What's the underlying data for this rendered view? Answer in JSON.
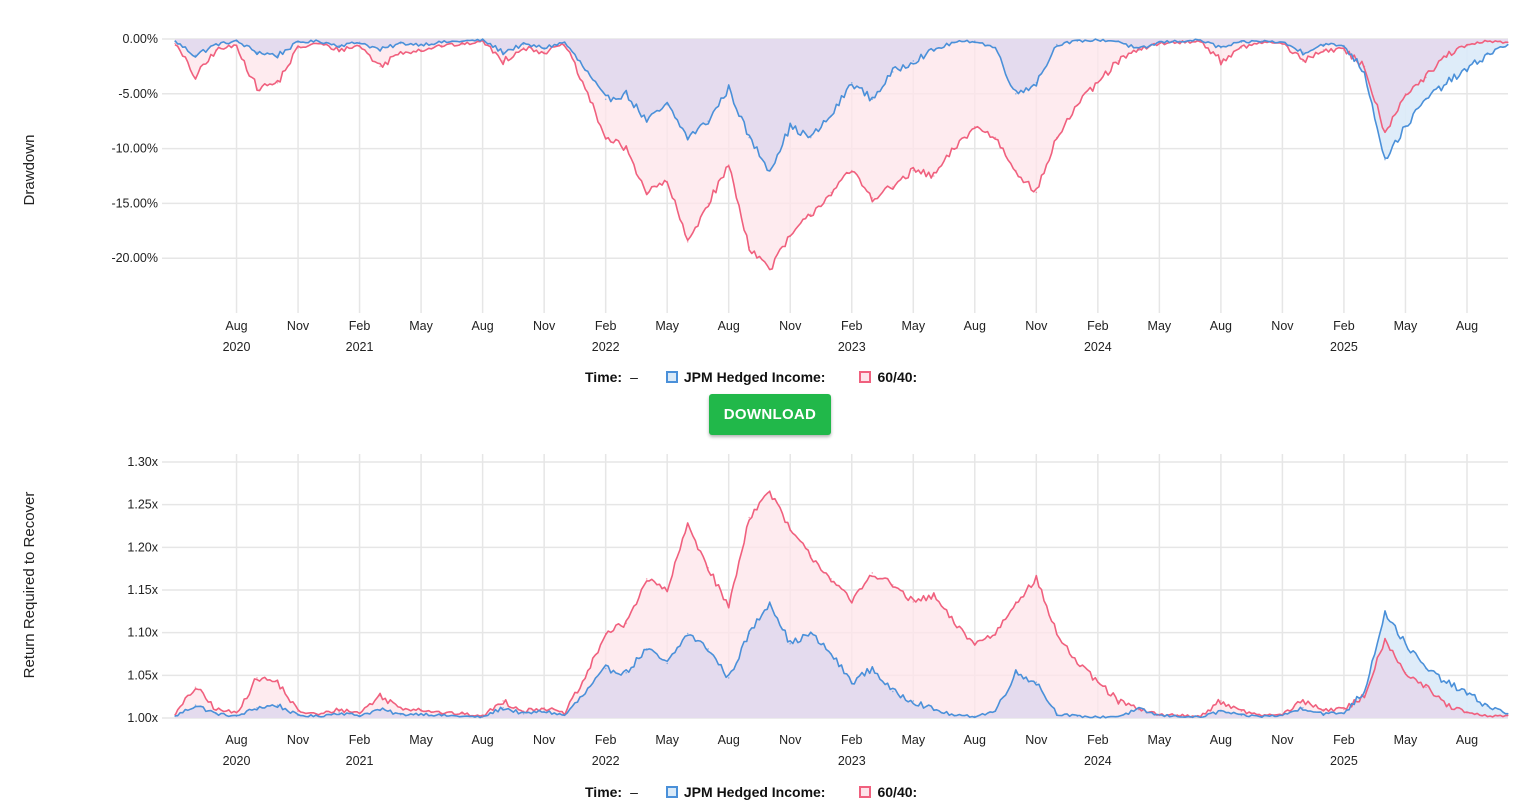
{
  "colors": {
    "jpm": "#4a90d9",
    "jpm_fill": "#daeaf8",
    "bench": "#f0607e",
    "bench_fill": "#fde4ea",
    "overlap_fill": "#e4dbee",
    "grid": "#e6e6e6",
    "download_bg": "#21b84a"
  },
  "legend": {
    "time_label": "Time:",
    "time_value": "–",
    "series_1": "JPM Hedged Income:",
    "series_2": "60/40:"
  },
  "download_label": "DOWNLOAD",
  "x_axis": {
    "month_ticks": [
      "Aug",
      "Nov",
      "Feb",
      "May",
      "Aug",
      "Nov",
      "Feb",
      "May",
      "Aug",
      "Nov",
      "Feb",
      "May",
      "Aug",
      "Nov",
      "Feb",
      "May",
      "Aug",
      "Nov",
      "Feb",
      "May",
      "Aug"
    ],
    "year_labels": [
      {
        "label": "2020",
        "tick_index": 0
      },
      {
        "label": "2021",
        "tick_index": 2
      },
      {
        "label": "2022",
        "tick_index": 6
      },
      {
        "label": "2023",
        "tick_index": 10
      },
      {
        "label": "2024",
        "tick_index": 14
      },
      {
        "label": "2025",
        "tick_index": 18
      }
    ],
    "range": [
      "2020-05",
      "2025-10"
    ]
  },
  "chart_data": [
    {
      "type": "area",
      "id": "drawdown",
      "ylabel": "Drawdown",
      "ylim": [
        -0.25,
        0.0
      ],
      "yticks": [
        0,
        -0.05,
        -0.1,
        -0.15,
        -0.2
      ],
      "ytick_labels": [
        "0.00%",
        "-5.00%",
        "-10.00%",
        "-15.00%",
        "-20.00%"
      ],
      "grid": true,
      "x": [
        "2020-05",
        "2020-06",
        "2020-07",
        "2020-08",
        "2020-09",
        "2020-10",
        "2020-11",
        "2020-12",
        "2021-01",
        "2021-02",
        "2021-03",
        "2021-04",
        "2021-05",
        "2021-06",
        "2021-07",
        "2021-08",
        "2021-09",
        "2021-10",
        "2021-11",
        "2021-12",
        "2022-01",
        "2022-02",
        "2022-03",
        "2022-04",
        "2022-05",
        "2022-06",
        "2022-07",
        "2022-08",
        "2022-09",
        "2022-10",
        "2022-11",
        "2022-12",
        "2023-01",
        "2023-02",
        "2023-03",
        "2023-04",
        "2023-05",
        "2023-06",
        "2023-07",
        "2023-08",
        "2023-09",
        "2023-10",
        "2023-11",
        "2023-12",
        "2024-01",
        "2024-02",
        "2024-03",
        "2024-04",
        "2024-05",
        "2024-06",
        "2024-07",
        "2024-08",
        "2024-09",
        "2024-10",
        "2024-11",
        "2024-12",
        "2025-01",
        "2025-02",
        "2025-03",
        "2025-04",
        "2025-05",
        "2025-06",
        "2025-07",
        "2025-08",
        "2025-09",
        "2025-10"
      ],
      "series": [
        {
          "name": "JPM Hedged Income",
          "values": [
            -0.002,
            -0.015,
            -0.005,
            -0.002,
            -0.012,
            -0.015,
            -0.003,
            -0.002,
            -0.006,
            -0.003,
            -0.01,
            -0.004,
            -0.005,
            -0.003,
            -0.002,
            -0.001,
            -0.012,
            -0.005,
            -0.008,
            -0.003,
            -0.028,
            -0.055,
            -0.05,
            -0.075,
            -0.06,
            -0.09,
            -0.075,
            -0.045,
            -0.09,
            -0.12,
            -0.08,
            -0.09,
            -0.07,
            -0.04,
            -0.055,
            -0.03,
            -0.02,
            -0.01,
            -0.003,
            -0.002,
            -0.008,
            -0.05,
            -0.04,
            -0.005,
            -0.002,
            -0.001,
            -0.002,
            -0.01,
            -0.003,
            -0.002,
            -0.001,
            -0.008,
            -0.003,
            -0.002,
            -0.003,
            -0.012,
            -0.005,
            -0.006,
            -0.03,
            -0.11,
            -0.08,
            -0.055,
            -0.04,
            -0.028,
            -0.014,
            -0.005
          ]
        },
        {
          "name": "60/40",
          "values": [
            -0.004,
            -0.035,
            -0.01,
            -0.006,
            -0.045,
            -0.04,
            -0.008,
            -0.004,
            -0.01,
            -0.006,
            -0.025,
            -0.012,
            -0.01,
            -0.006,
            -0.005,
            -0.002,
            -0.02,
            -0.008,
            -0.012,
            -0.005,
            -0.045,
            -0.09,
            -0.1,
            -0.14,
            -0.13,
            -0.185,
            -0.15,
            -0.115,
            -0.19,
            -0.21,
            -0.18,
            -0.16,
            -0.14,
            -0.12,
            -0.145,
            -0.135,
            -0.12,
            -0.125,
            -0.1,
            -0.08,
            -0.09,
            -0.12,
            -0.14,
            -0.09,
            -0.06,
            -0.04,
            -0.02,
            -0.01,
            -0.004,
            -0.003,
            -0.002,
            -0.02,
            -0.008,
            -0.003,
            -0.004,
            -0.02,
            -0.01,
            -0.01,
            -0.025,
            -0.085,
            -0.05,
            -0.035,
            -0.015,
            -0.006,
            -0.002,
            -0.003
          ]
        }
      ]
    },
    {
      "type": "area",
      "id": "recover",
      "ylabel": "Return Required to Recover",
      "ylim": [
        1.0,
        1.3
      ],
      "yticks": [
        1.0,
        1.05,
        1.1,
        1.15,
        1.2,
        1.25,
        1.3
      ],
      "ytick_labels": [
        "1.00x",
        "1.05x",
        "1.10x",
        "1.15x",
        "1.20x",
        "1.25x",
        "1.30x"
      ],
      "grid": true,
      "x": [
        "2020-05",
        "2020-06",
        "2020-07",
        "2020-08",
        "2020-09",
        "2020-10",
        "2020-11",
        "2020-12",
        "2021-01",
        "2021-02",
        "2021-03",
        "2021-04",
        "2021-05",
        "2021-06",
        "2021-07",
        "2021-08",
        "2021-09",
        "2021-10",
        "2021-11",
        "2021-12",
        "2022-01",
        "2022-02",
        "2022-03",
        "2022-04",
        "2022-05",
        "2022-06",
        "2022-07",
        "2022-08",
        "2022-09",
        "2022-10",
        "2022-11",
        "2022-12",
        "2023-01",
        "2023-02",
        "2023-03",
        "2023-04",
        "2023-05",
        "2023-06",
        "2023-07",
        "2023-08",
        "2023-09",
        "2023-10",
        "2023-11",
        "2023-12",
        "2024-01",
        "2024-02",
        "2024-03",
        "2024-04",
        "2024-05",
        "2024-06",
        "2024-07",
        "2024-08",
        "2024-09",
        "2024-10",
        "2024-11",
        "2024-12",
        "2025-01",
        "2025-02",
        "2025-03",
        "2025-04",
        "2025-05",
        "2025-06",
        "2025-07",
        "2025-08",
        "2025-09",
        "2025-10"
      ],
      "series": [
        {
          "name": "JPM Hedged Income",
          "values": [
            1.002,
            1.015,
            1.005,
            1.002,
            1.012,
            1.015,
            1.003,
            1.002,
            1.006,
            1.003,
            1.01,
            1.004,
            1.005,
            1.003,
            1.002,
            1.001,
            1.012,
            1.005,
            1.008,
            1.003,
            1.029,
            1.058,
            1.053,
            1.081,
            1.064,
            1.099,
            1.081,
            1.047,
            1.099,
            1.136,
            1.087,
            1.099,
            1.075,
            1.042,
            1.058,
            1.031,
            1.02,
            1.01,
            1.003,
            1.002,
            1.008,
            1.053,
            1.042,
            1.005,
            1.002,
            1.001,
            1.002,
            1.01,
            1.003,
            1.002,
            1.001,
            1.008,
            1.003,
            1.002,
            1.003,
            1.012,
            1.005,
            1.006,
            1.031,
            1.124,
            1.087,
            1.058,
            1.042,
            1.029,
            1.014,
            1.005
          ]
        },
        {
          "name": "60/40",
          "values": [
            1.004,
            1.036,
            1.01,
            1.006,
            1.047,
            1.042,
            1.008,
            1.004,
            1.01,
            1.006,
            1.026,
            1.012,
            1.01,
            1.006,
            1.005,
            1.002,
            1.02,
            1.008,
            1.012,
            1.005,
            1.047,
            1.099,
            1.111,
            1.163,
            1.149,
            1.227,
            1.176,
            1.13,
            1.235,
            1.266,
            1.22,
            1.19,
            1.163,
            1.136,
            1.17,
            1.156,
            1.136,
            1.143,
            1.111,
            1.087,
            1.099,
            1.136,
            1.163,
            1.099,
            1.064,
            1.042,
            1.02,
            1.01,
            1.004,
            1.003,
            1.002,
            1.02,
            1.008,
            1.003,
            1.004,
            1.02,
            1.01,
            1.01,
            1.026,
            1.093,
            1.053,
            1.036,
            1.015,
            1.006,
            1.002,
            1.003
          ]
        }
      ]
    }
  ]
}
